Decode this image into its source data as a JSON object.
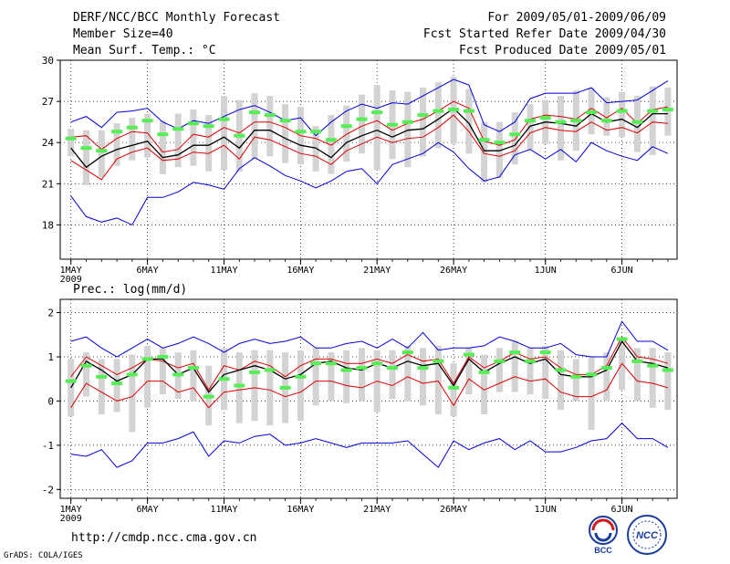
{
  "header": {
    "title": "DERF/NCC/BCC Monthly Forecast",
    "member_size": "Member Size=40",
    "variable": "Mean Surf. Temp.: °C",
    "period": "For 2009/05/01-2009/06/09",
    "fcst_started": "Fcst Started Refer Date 2009/04/30",
    "fcst_produced": "Fcst Produced Date 2009/05/01"
  },
  "precip_label": "Prec.: log(mm/d)",
  "footer": {
    "url": "http://cmdp.ncc.cma.gov.cn",
    "grads": "GrADS: COLA/IGES"
  },
  "logos": {
    "bcc": "BCC",
    "ncc": "NCC"
  },
  "colors": {
    "max_min": "#0000dd",
    "ensemble_mean": "#000000",
    "spread": "#dd0000",
    "observation": "#55ee55",
    "range_bar": "#d3d3d3"
  },
  "chart_data": [
    {
      "type": "line",
      "title": "Mean Surf. Temp.: °C",
      "ylim": [
        15.5,
        30
      ],
      "yticks": [
        18,
        21,
        24,
        27,
        30
      ],
      "xlim": [
        0.3,
        40.6
      ],
      "xticks": [
        {
          "day": 1,
          "label": "1MAY"
        },
        {
          "day": 6,
          "label": "6MAY"
        },
        {
          "day": 11,
          "label": "11MAY"
        },
        {
          "day": 16,
          "label": "16MAY"
        },
        {
          "day": 21,
          "label": "21MAY"
        },
        {
          "day": 26,
          "label": "26MAY"
        },
        {
          "day": 32,
          "label": "1JUN"
        },
        {
          "day": 37,
          "label": "6JUN"
        }
      ],
      "xyear": "2009",
      "grid": true,
      "days": [
        1,
        2,
        3,
        4,
        5,
        6,
        7,
        8,
        9,
        10,
        11,
        12,
        13,
        14,
        15,
        16,
        17,
        18,
        19,
        20,
        21,
        22,
        23,
        24,
        25,
        26,
        27,
        28,
        29,
        30,
        31,
        32,
        33,
        34,
        35,
        36,
        37,
        38,
        39,
        40
      ],
      "series": [
        {
          "name": "max",
          "values": [
            25.5,
            25.9,
            25.1,
            26.2,
            26.3,
            26.5,
            25.5,
            25.0,
            25.6,
            25.4,
            25.9,
            26.4,
            26.7,
            26.2,
            25.6,
            25.8,
            24.5,
            25.5,
            26.3,
            26.8,
            26.5,
            26.9,
            26.8,
            27.4,
            28.0,
            28.6,
            28.2,
            25.3,
            24.8,
            25.5,
            27.2,
            27.6,
            27.6,
            27.6,
            28.0,
            26.9,
            27.0,
            27.1,
            27.8,
            28.5
          ]
        },
        {
          "name": "mean_plus_sd",
          "values": [
            24.4,
            24.5,
            23.5,
            24.3,
            24.8,
            24.7,
            23.3,
            23.5,
            24.6,
            24.4,
            25.1,
            24.7,
            25.5,
            25.5,
            25.1,
            24.5,
            24.3,
            23.8,
            24.6,
            25.2,
            25.6,
            24.9,
            25.4,
            25.7,
            26.3,
            27.0,
            26.5,
            24.1,
            23.8,
            24.2,
            25.7,
            26.0,
            25.9,
            25.7,
            26.5,
            25.8,
            26.5,
            25.4,
            26.4,
            26.6
          ]
        },
        {
          "name": "ensemble_mean",
          "values": [
            23.6,
            22.2,
            23.0,
            23.5,
            23.8,
            24.1,
            22.9,
            23.1,
            23.8,
            23.8,
            24.4,
            23.6,
            24.9,
            24.9,
            24.3,
            23.8,
            23.6,
            22.9,
            24.0,
            24.5,
            24.9,
            24.4,
            24.9,
            25.0,
            25.7,
            26.5,
            25.4,
            23.4,
            23.4,
            23.8,
            25.2,
            25.5,
            25.4,
            25.2,
            26.1,
            25.5,
            25.7,
            25.1,
            26.1,
            26.1
          ]
        },
        {
          "name": "mean_minus_sd",
          "values": [
            22.7,
            22.0,
            21.3,
            22.8,
            23.3,
            23.6,
            22.7,
            22.8,
            23.3,
            23.2,
            23.8,
            22.8,
            24.4,
            24.2,
            23.7,
            23.2,
            23.0,
            22.4,
            23.4,
            23.9,
            24.4,
            24.0,
            24.3,
            24.4,
            25.1,
            26.0,
            24.8,
            23.2,
            23.0,
            23.4,
            24.7,
            25.1,
            24.9,
            24.8,
            25.5,
            24.9,
            25.1,
            24.7,
            25.5,
            25.4
          ]
        },
        {
          "name": "min",
          "values": [
            20.1,
            18.6,
            18.2,
            18.5,
            18.0,
            20.0,
            20.0,
            20.4,
            21.1,
            20.9,
            20.6,
            22.1,
            22.9,
            22.3,
            21.6,
            21.2,
            20.7,
            21.2,
            21.9,
            22.1,
            21.0,
            22.4,
            22.8,
            23.2,
            24.0,
            23.3,
            22.1,
            21.2,
            21.5,
            23.1,
            23.5,
            22.8,
            23.5,
            22.6,
            24.0,
            23.4,
            23.0,
            22.7,
            23.7,
            23.2
          ]
        },
        {
          "name": "observation",
          "values": [
            24.3,
            23.6,
            23.4,
            24.8,
            25.1,
            25.6,
            24.6,
            25.0,
            25.4,
            25.2,
            25.7,
            24.5,
            26.2,
            26.0,
            25.6,
            24.8,
            24.8,
            24.2,
            25.2,
            25.7,
            26.2,
            25.3,
            25.5,
            26.0,
            26.3,
            26.4,
            26.3,
            24.2,
            24.0,
            24.6,
            25.6,
            25.8,
            25.5,
            25.6,
            26.2,
            25.6,
            26.3,
            25.5,
            26.3,
            26.4
          ]
        },
        {
          "name": "range_low",
          "values": [
            23.0,
            20.9,
            21.5,
            22.3,
            22.7,
            22.9,
            21.7,
            22.2,
            22.3,
            21.9,
            22.0,
            21.9,
            22.8,
            23.0,
            22.5,
            22.4,
            21.9,
            21.7,
            22.6,
            23.2,
            22.0,
            22.8,
            22.2,
            23.0,
            23.6,
            23.9,
            23.2,
            21.1,
            21.4,
            22.4,
            23.5,
            23.9,
            22.7,
            23.4,
            24.6,
            24.5,
            24.4,
            23.3,
            23.1,
            24.5
          ]
        },
        {
          "name": "range_high",
          "values": [
            25.0,
            24.9,
            24.9,
            25.4,
            25.8,
            26.1,
            25.6,
            26.1,
            26.4,
            26.0,
            27.4,
            27.1,
            27.6,
            27.4,
            26.8,
            26.6,
            25.2,
            26.0,
            26.7,
            27.5,
            28.2,
            27.8,
            27.7,
            28.0,
            28.4,
            28.8,
            27.9,
            25.5,
            25.5,
            26.2,
            26.8,
            27.1,
            27.4,
            27.8,
            28.0,
            27.3,
            27.7,
            27.4,
            28.1,
            28.0
          ]
        }
      ]
    },
    {
      "type": "line",
      "title": "Prec.: log(mm/d)",
      "ylim": [
        -2.2,
        2.3
      ],
      "yticks": [
        -2,
        -1,
        0,
        1,
        2
      ],
      "xlim": [
        0.3,
        40.6
      ],
      "xticks": [
        {
          "day": 1,
          "label": "1MAY"
        },
        {
          "day": 6,
          "label": "6MAY"
        },
        {
          "day": 11,
          "label": "11MAY"
        },
        {
          "day": 16,
          "label": "16MAY"
        },
        {
          "day": 21,
          "label": "21MAY"
        },
        {
          "day": 26,
          "label": "26MAY"
        },
        {
          "day": 32,
          "label": "1JUN"
        },
        {
          "day": 37,
          "label": "6JUN"
        }
      ],
      "xyear": "2009",
      "grid": true,
      "days": [
        1,
        2,
        3,
        4,
        5,
        6,
        7,
        8,
        9,
        10,
        11,
        12,
        13,
        14,
        15,
        16,
        17,
        18,
        19,
        20,
        21,
        22,
        23,
        24,
        25,
        26,
        27,
        28,
        29,
        30,
        31,
        32,
        33,
        34,
        35,
        36,
        37,
        38,
        39,
        40
      ],
      "series": [
        {
          "name": "max",
          "values": [
            1.35,
            1.45,
            1.2,
            1.0,
            1.2,
            1.4,
            1.2,
            1.3,
            1.45,
            1.3,
            1.1,
            1.3,
            1.4,
            1.3,
            1.35,
            1.45,
            1.2,
            1.2,
            1.3,
            1.35,
            1.2,
            1.4,
            1.2,
            1.55,
            1.15,
            1.2,
            1.2,
            1.25,
            1.45,
            1.35,
            1.2,
            1.2,
            1.3,
            1.05,
            1.0,
            1.0,
            1.8,
            1.35,
            1.35,
            1.15
          ]
        },
        {
          "name": "mean_plus_sd",
          "values": [
            0.55,
            1.0,
            0.8,
            0.6,
            0.75,
            0.95,
            0.9,
            0.75,
            0.85,
            0.25,
            0.8,
            0.7,
            0.9,
            0.8,
            0.55,
            0.8,
            0.95,
            0.95,
            0.85,
            0.85,
            0.95,
            0.85,
            1.05,
            0.9,
            0.95,
            0.4,
            1.0,
            0.75,
            0.9,
            1.1,
            0.95,
            1.0,
            0.75,
            0.6,
            0.6,
            0.8,
            1.45,
            1.0,
            0.95,
            0.85
          ]
        },
        {
          "name": "ensemble_mean",
          "values": [
            0.3,
            0.9,
            0.7,
            0.45,
            0.6,
            0.95,
            0.95,
            0.6,
            0.75,
            0.2,
            0.6,
            0.7,
            0.8,
            0.7,
            0.5,
            0.6,
            0.85,
            0.9,
            0.75,
            0.7,
            0.85,
            0.75,
            0.9,
            0.8,
            0.85,
            0.35,
            0.95,
            0.65,
            0.85,
            1.0,
            0.85,
            0.95,
            0.6,
            0.55,
            0.55,
            0.7,
            1.35,
            0.9,
            0.85,
            0.75
          ]
        },
        {
          "name": "mean_minus_sd",
          "values": [
            -0.15,
            0.4,
            0.2,
            0.0,
            0.1,
            0.45,
            0.45,
            0.2,
            0.3,
            -0.15,
            0.2,
            0.25,
            0.3,
            0.25,
            0.1,
            0.2,
            0.45,
            0.45,
            0.35,
            0.3,
            0.45,
            0.35,
            0.55,
            0.4,
            0.45,
            -0.1,
            0.5,
            0.25,
            0.4,
            0.55,
            0.45,
            0.5,
            0.2,
            0.1,
            0.1,
            0.25,
            0.85,
            0.45,
            0.4,
            0.3
          ]
        },
        {
          "name": "min",
          "values": [
            -1.2,
            -1.25,
            -1.1,
            -1.5,
            -1.35,
            -0.95,
            -0.95,
            -0.85,
            -0.7,
            -1.25,
            -0.9,
            -0.95,
            -0.8,
            -0.75,
            -1.0,
            -0.95,
            -0.85,
            -0.95,
            -1.05,
            -0.95,
            -0.95,
            -0.95,
            -0.9,
            -1.2,
            -1.5,
            -0.9,
            -1.1,
            -0.95,
            -0.85,
            -1.1,
            -0.9,
            -1.15,
            -1.15,
            -1.05,
            -0.9,
            -0.85,
            -0.5,
            -0.85,
            -0.85,
            -1.05
          ]
        },
        {
          "name": "observation",
          "values": [
            0.45,
            0.8,
            0.55,
            0.4,
            0.6,
            0.95,
            1.0,
            0.6,
            0.75,
            0.1,
            0.5,
            0.35,
            0.65,
            0.7,
            0.3,
            0.55,
            0.85,
            0.85,
            0.7,
            0.75,
            0.85,
            0.75,
            1.1,
            0.75,
            0.9,
            0.3,
            1.05,
            0.65,
            0.9,
            1.1,
            0.9,
            1.1,
            0.7,
            0.55,
            0.6,
            0.75,
            1.4,
            0.9,
            0.8,
            0.7
          ]
        },
        {
          "name": "range_low",
          "values": [
            -0.35,
            0.1,
            -0.3,
            -0.25,
            -0.7,
            -0.15,
            0.15,
            0.05,
            0.0,
            -0.55,
            -0.2,
            -0.5,
            -0.45,
            -0.55,
            -0.5,
            -0.45,
            -0.1,
            0.0,
            -0.05,
            0.0,
            -0.25,
            0.05,
            0.0,
            -0.1,
            -0.3,
            -0.35,
            0.15,
            -0.3,
            0.2,
            0.2,
            0.15,
            0.05,
            -0.2,
            0.0,
            -0.65,
            0.0,
            0.25,
            0.0,
            -0.15,
            -0.2
          ]
        },
        {
          "name": "range_high",
          "values": [
            0.95,
            1.1,
            0.95,
            0.95,
            1.05,
            1.25,
            1.2,
            1.1,
            1.15,
            0.8,
            1.2,
            1.1,
            1.15,
            1.15,
            1.1,
            1.15,
            1.2,
            1.1,
            1.15,
            1.2,
            1.15,
            1.15,
            1.25,
            1.2,
            1.25,
            0.85,
            1.2,
            1.05,
            1.2,
            1.35,
            1.2,
            1.25,
            1.15,
            0.95,
            1.0,
            1.1,
            1.4,
            1.2,
            1.2,
            1.1
          ]
        }
      ]
    }
  ]
}
